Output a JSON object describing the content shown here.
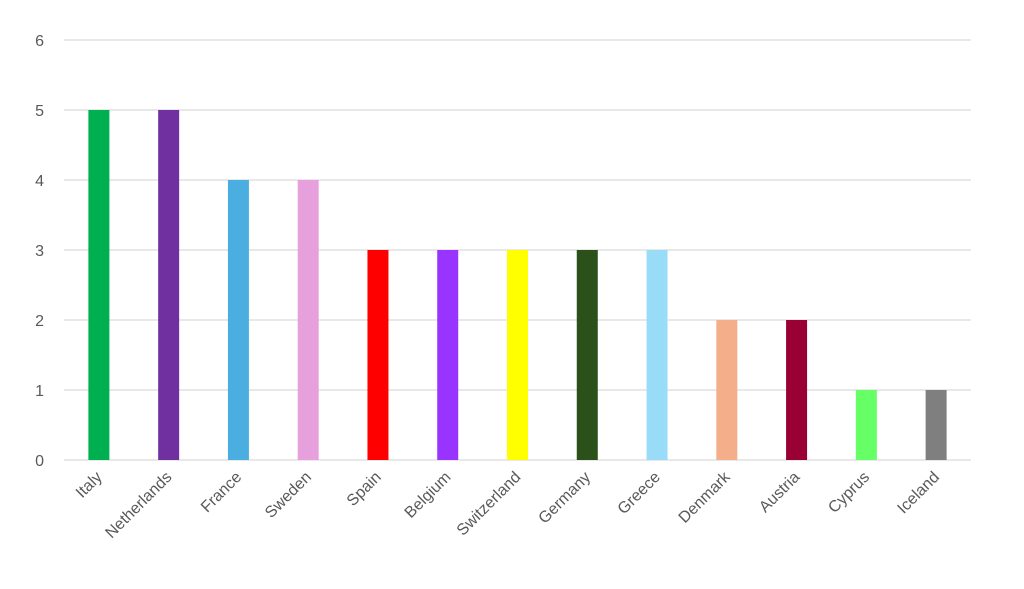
{
  "chart_data": {
    "type": "bar",
    "title": "",
    "xlabel": "",
    "ylabel": "",
    "ylim": [
      0,
      6
    ],
    "yticks": [
      0,
      1,
      2,
      3,
      4,
      5,
      6
    ],
    "grid": true,
    "legend": "none",
    "categories": [
      "Italy",
      "Netherlands",
      "France",
      "Sweden",
      "Spain",
      "Belgium",
      "Switzerland",
      "Germany",
      "Greece",
      "Denmark",
      "Austria",
      "Cyprus",
      "Iceland"
    ],
    "values": [
      5,
      5,
      4,
      4,
      3,
      3,
      3,
      3,
      3,
      2,
      2,
      1,
      1
    ],
    "colors": [
      "#00b050",
      "#7030a0",
      "#4aaee0",
      "#e6a1dc",
      "#ff0000",
      "#9933ff",
      "#ffff00",
      "#2c5019",
      "#99dcf8",
      "#f4ae8a",
      "#990033",
      "#66ff66",
      "#7f7f7f"
    ]
  }
}
